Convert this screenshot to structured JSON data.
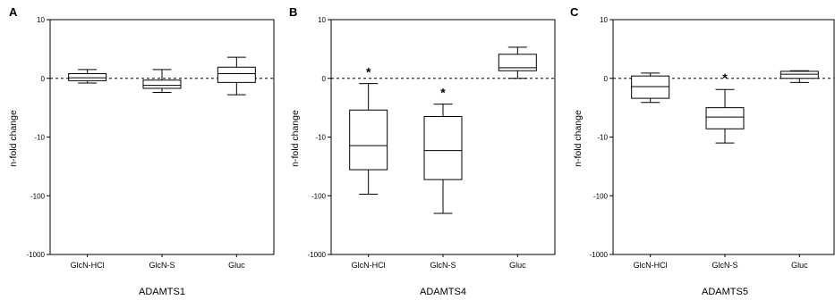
{
  "chart_data": [
    {
      "type": "box",
      "panel_label": "A",
      "gene": "ADAMTS1",
      "ylabel": "n-fold change",
      "y_ticks": [
        "10",
        "0",
        "-10",
        "-100",
        "-1000"
      ],
      "categories": [
        "GlcN-HCl",
        "GlcN-S",
        "Gluc"
      ],
      "boxes": [
        {
          "min": -0.8,
          "q1": -0.4,
          "median": 0.1,
          "q3": 0.8,
          "max": 1.5,
          "significant": false
        },
        {
          "min": -2.4,
          "q1": -1.7,
          "median": -1.2,
          "q3": -0.3,
          "max": 1.5,
          "significant": false
        },
        {
          "min": -2.8,
          "q1": -0.7,
          "median": 0.8,
          "q3": 1.9,
          "max": 3.6,
          "significant": false
        }
      ],
      "reference_line": 0,
      "significance_marker": "*"
    },
    {
      "type": "box",
      "panel_label": "B",
      "gene": "ADAMTS4",
      "ylabel": "n-fold change",
      "y_ticks": [
        "10",
        "0",
        "-10",
        "-100",
        "-1000"
      ],
      "categories": [
        "GlcN-HCl",
        "GlcN-S",
        "Gluc"
      ],
      "boxes": [
        {
          "min": -94,
          "q1": -36,
          "median": -14,
          "q3": -5.4,
          "max": -0.9,
          "significant": true
        },
        {
          "min": -200,
          "q1": -53,
          "median": -17,
          "q3": -6.5,
          "max": -4.4,
          "significant": true
        },
        {
          "min": 0,
          "q1": 1.3,
          "median": 1.8,
          "q3": 4.1,
          "max": 5.3,
          "significant": false
        }
      ],
      "reference_line": 0,
      "significance_marker": "*"
    },
    {
      "type": "box",
      "panel_label": "C",
      "gene": "ADAMTS5",
      "ylabel": "n-fold change",
      "y_ticks": [
        "10",
        "0",
        "-10",
        "-100",
        "-1000"
      ],
      "categories": [
        "GlcN-HCl",
        "GlcN-S",
        "Gluc"
      ],
      "boxes": [
        {
          "min": -4.1,
          "q1": -3.4,
          "median": -1.4,
          "q3": 0.4,
          "max": 0.9,
          "significant": false
        },
        {
          "min": -12.6,
          "q1": -8.6,
          "median": -6.6,
          "q3": -5.0,
          "max": -1.9,
          "significant": true
        },
        {
          "min": -0.7,
          "q1": 0,
          "median": 0.7,
          "q3": 1.2,
          "max": 1.3,
          "significant": false
        }
      ],
      "reference_line": 0,
      "significance_marker": "*"
    }
  ]
}
